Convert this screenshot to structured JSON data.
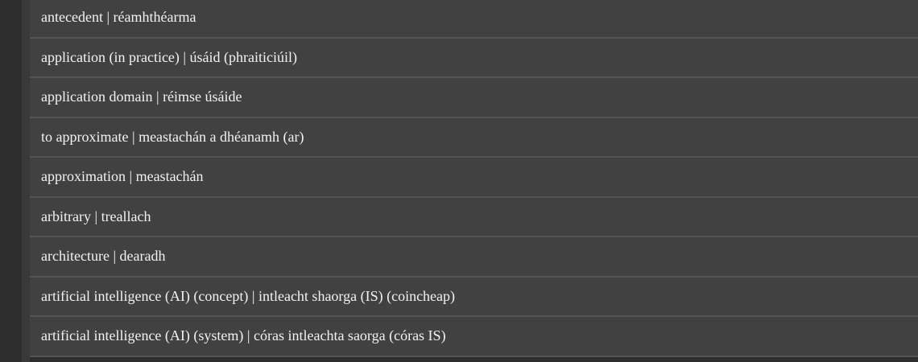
{
  "glossary": {
    "items": [
      {
        "label": "antecedent | réamhthéarma"
      },
      {
        "label": "application (in practice) | úsáid (phraiticiúil)"
      },
      {
        "label": "application domain | réimse úsáide"
      },
      {
        "label": "to approximate | meastachán a dhéanamh (ar)"
      },
      {
        "label": "approximation | meastachán"
      },
      {
        "label": "arbitrary | treallach"
      },
      {
        "label": "architecture | dearadh"
      },
      {
        "label": "artificial intelligence (AI) (concept) | intleacht shaorga (IS) (coincheap)"
      },
      {
        "label": "artificial intelligence (AI) (system) | córas intleachta saorga (córas IS)"
      }
    ]
  }
}
